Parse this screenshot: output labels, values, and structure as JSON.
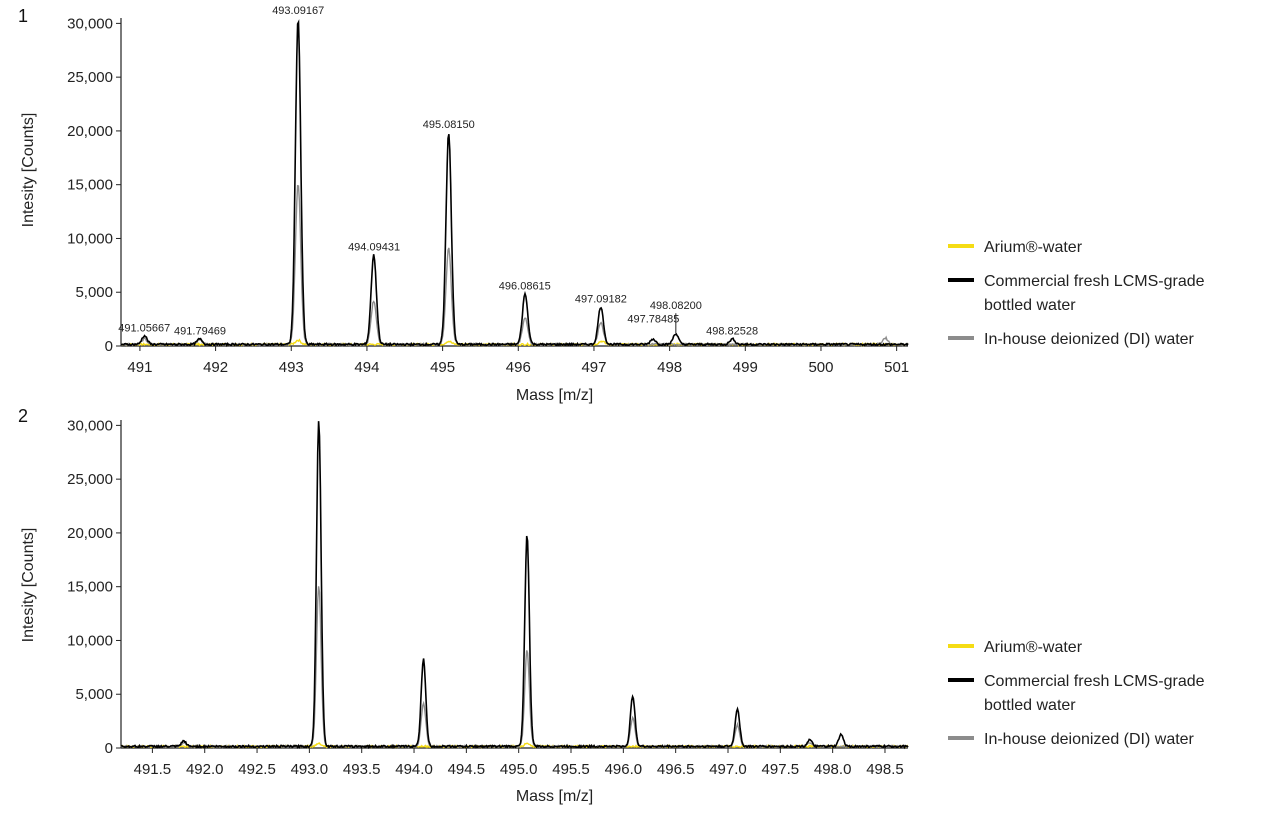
{
  "chart_data": [
    {
      "panel": "1",
      "type": "line",
      "xlabel": "Mass [m/z]",
      "ylabel": "Intesity [Counts]",
      "xlim": [
        490.75,
        501.15
      ],
      "ylim": [
        0,
        30500
      ],
      "xticks": [
        491,
        492,
        493,
        494,
        495,
        496,
        497,
        498,
        499,
        500,
        501
      ],
      "xtick_labels": [
        "491",
        "492",
        "493",
        "494",
        "495",
        "496",
        "497",
        "498",
        "499",
        "500",
        "501"
      ],
      "yticks": [
        0,
        5000,
        10000,
        15000,
        20000,
        25000,
        30000
      ],
      "ytick_labels": [
        "0",
        "5,000",
        "10,000",
        "15,000",
        "20,000",
        "25,000",
        "30,000"
      ],
      "legend_position": "right",
      "series": [
        {
          "name": "Arium®-water",
          "color": "#f5dc14",
          "peaks": [
            {
              "x": 493.09,
              "y": 400
            },
            {
              "x": 495.08,
              "y": 300
            },
            {
              "x": 497.1,
              "y": 300
            }
          ]
        },
        {
          "name": "Commercial fresh LCMS-grade bottled water",
          "color": "#000000",
          "peaks": [
            {
              "x": 491.06,
              "y": 800
            },
            {
              "x": 491.79,
              "y": 500
            },
            {
              "x": 493.09,
              "y": 30300
            },
            {
              "x": 494.09,
              "y": 8300
            },
            {
              "x": 495.08,
              "y": 19700
            },
            {
              "x": 496.09,
              "y": 4700
            },
            {
              "x": 497.09,
              "y": 3500
            },
            {
              "x": 497.78,
              "y": 500
            },
            {
              "x": 498.08,
              "y": 1000
            },
            {
              "x": 498.83,
              "y": 500
            }
          ]
        },
        {
          "name": "In-house deionized (DI) water",
          "color": "#8c8c8c",
          "peaks": [
            {
              "x": 491.06,
              "y": 500
            },
            {
              "x": 491.79,
              "y": 400
            },
            {
              "x": 493.09,
              "y": 15000
            },
            {
              "x": 494.09,
              "y": 4000
            },
            {
              "x": 495.08,
              "y": 9000
            },
            {
              "x": 496.09,
              "y": 2500
            },
            {
              "x": 497.09,
              "y": 2000
            },
            {
              "x": 500.85,
              "y": 600
            }
          ]
        }
      ],
      "annotations": [
        {
          "label": "493.09167",
          "x": 493.09167,
          "y": 30300
        },
        {
          "label": "494.09431",
          "x": 494.09431,
          "y": 8300
        },
        {
          "label": "495.08150",
          "x": 495.0815,
          "y": 19700
        },
        {
          "label": "496.08615",
          "x": 496.08615,
          "y": 4700
        },
        {
          "label": "497.09182",
          "x": 497.09182,
          "y": 3500
        },
        {
          "label": "491.05667",
          "x": 491.05667,
          "y": 800
        },
        {
          "label": "491.79469",
          "x": 491.79469,
          "y": 500
        },
        {
          "label": "497.78485",
          "x": 497.78485,
          "y": 500
        },
        {
          "label": "498.08200",
          "x": 498.082,
          "y": 1000
        },
        {
          "label": "498.82528",
          "x": 498.82528,
          "y": 500
        }
      ]
    },
    {
      "panel": "2",
      "type": "line",
      "xlabel": "Mass [m/z]",
      "ylabel": "Intesity [Counts]",
      "xlim": [
        491.2,
        498.72
      ],
      "ylim": [
        0,
        30500
      ],
      "xticks": [
        491.5,
        492.0,
        492.5,
        493.0,
        493.5,
        494.0,
        494.5,
        495.0,
        495.5,
        496.0,
        496.5,
        497.0,
        497.5,
        498.0,
        498.5
      ],
      "xtick_labels": [
        "491.5",
        "492.0",
        "492.5",
        "493.0",
        "493.5",
        "494.0",
        "494.5",
        "495.0",
        "495.5",
        "496.0",
        "496.5",
        "497.0",
        "497.5",
        "498.0",
        "498.5"
      ],
      "yticks": [
        0,
        5000,
        10000,
        15000,
        20000,
        25000,
        30000
      ],
      "ytick_labels": [
        "0",
        "5,000",
        "10,000",
        "15,000",
        "20,000",
        "25,000",
        "30,000"
      ],
      "legend_position": "right",
      "series": [
        {
          "name": "Arium®-water",
          "color": "#f5dc14",
          "peaks": [
            {
              "x": 493.09,
              "y": 300
            },
            {
              "x": 495.08,
              "y": 300
            }
          ]
        },
        {
          "name": "Commercial fresh LCMS-grade bottled water",
          "color": "#000000",
          "peaks": [
            {
              "x": 491.8,
              "y": 500
            },
            {
              "x": 493.09,
              "y": 30300
            },
            {
              "x": 494.09,
              "y": 8100
            },
            {
              "x": 495.08,
              "y": 19700
            },
            {
              "x": 496.09,
              "y": 4700
            },
            {
              "x": 497.09,
              "y": 3500
            },
            {
              "x": 497.78,
              "y": 600
            },
            {
              "x": 498.08,
              "y": 1100
            }
          ]
        },
        {
          "name": "In-house deionized (DI) water",
          "color": "#8c8c8c",
          "peaks": [
            {
              "x": 491.8,
              "y": 400
            },
            {
              "x": 493.09,
              "y": 15000
            },
            {
              "x": 494.09,
              "y": 4000
            },
            {
              "x": 495.08,
              "y": 9000
            },
            {
              "x": 496.09,
              "y": 2700
            },
            {
              "x": 497.09,
              "y": 2000
            },
            {
              "x": 497.78,
              "y": 400
            }
          ]
        }
      ],
      "annotations": []
    }
  ],
  "legend": [
    {
      "label": "Arium®-water",
      "color": "#f5dc14"
    },
    {
      "label": "Commercial fresh LCMS-grade bottled water",
      "color": "#000000"
    },
    {
      "label": "In-house deionized (DI) water",
      "color": "#8c8c8c"
    }
  ]
}
